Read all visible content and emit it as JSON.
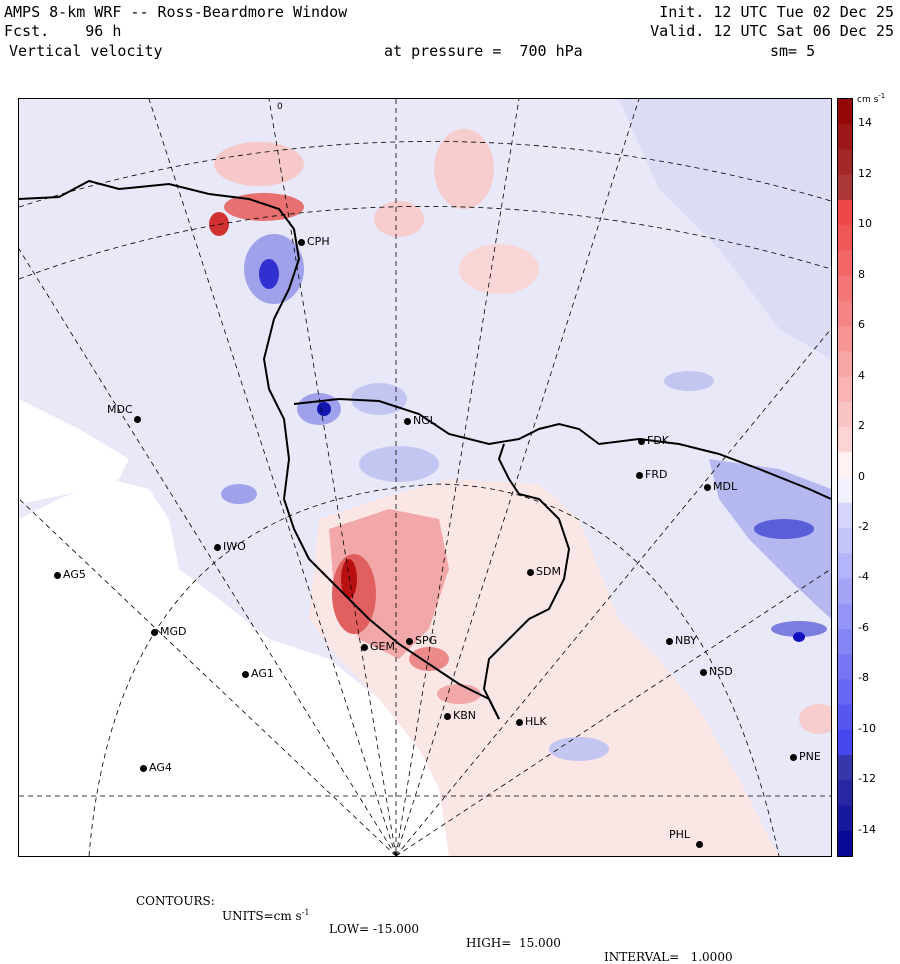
{
  "header": {
    "line1_left": "AMPS 8-km WRF -- Ross-Beardmore Window",
    "line2_left": "Fcst.    96 h",
    "line3_left": "Vertical velocity",
    "line1_right": "Init. 12 UTC Tue 02 Dec 25",
    "line2_right": "Valid. 12 UTC Sat 06 Dec 25",
    "pressure": "at pressure =  700 hPa",
    "smoothing": "sm= 5"
  },
  "map": {
    "longitude_label": "0",
    "colors": {
      "neg_light": "#e6e6fa",
      "neg_mid": "#b9bdf0",
      "neg_strong": "#6b6fe0",
      "neg_deep": "#1010c0",
      "pos_light": "#fde4e4",
      "pos_mid": "#f4b0b0",
      "pos_strong": "#e05050",
      "pos_deep": "#a00000",
      "land_white": "#ffffff"
    },
    "stations": [
      {
        "id": "CPH",
        "label": "CPH"
      },
      {
        "id": "MDC",
        "label": "MDC"
      },
      {
        "id": "NGL",
        "label": "NGL"
      },
      {
        "id": "FDK",
        "label": "FDK"
      },
      {
        "id": "FRD",
        "label": "FRD"
      },
      {
        "id": "MDL",
        "label": "MDL"
      },
      {
        "id": "IWO",
        "label": "IWO"
      },
      {
        "id": "AG5",
        "label": "AG5"
      },
      {
        "id": "SDM",
        "label": "SDM"
      },
      {
        "id": "MGD",
        "label": "MGD"
      },
      {
        "id": "NBY",
        "label": "NBY"
      },
      {
        "id": "AG1",
        "label": "AG1"
      },
      {
        "id": "GEM",
        "label": "GEM"
      },
      {
        "id": "SPG",
        "label": "SPG"
      },
      {
        "id": "NSD",
        "label": "NSD"
      },
      {
        "id": "KBN",
        "label": "KBN"
      },
      {
        "id": "HLK",
        "label": "HLK"
      },
      {
        "id": "AG4",
        "label": "AG4"
      },
      {
        "id": "PNE",
        "label": "PNE"
      },
      {
        "id": "PHL",
        "label": "PHL"
      }
    ]
  },
  "colorbar": {
    "units": "cm s",
    "units_exp": "-1",
    "ticks": [
      "14",
      "12",
      "10",
      "8",
      "6",
      "4",
      "2",
      "0",
      "-2",
      "-4",
      "-6",
      "-8",
      "-10",
      "-12",
      "-14"
    ]
  },
  "footer": {
    "contours": "CONTOURS:",
    "units": "UNITS=cm s",
    "units_exp": "-1",
    "low": "LOW= -15.000",
    "high": "HIGH=  15.000",
    "interval": "INTERVAL=   1.0000"
  }
}
